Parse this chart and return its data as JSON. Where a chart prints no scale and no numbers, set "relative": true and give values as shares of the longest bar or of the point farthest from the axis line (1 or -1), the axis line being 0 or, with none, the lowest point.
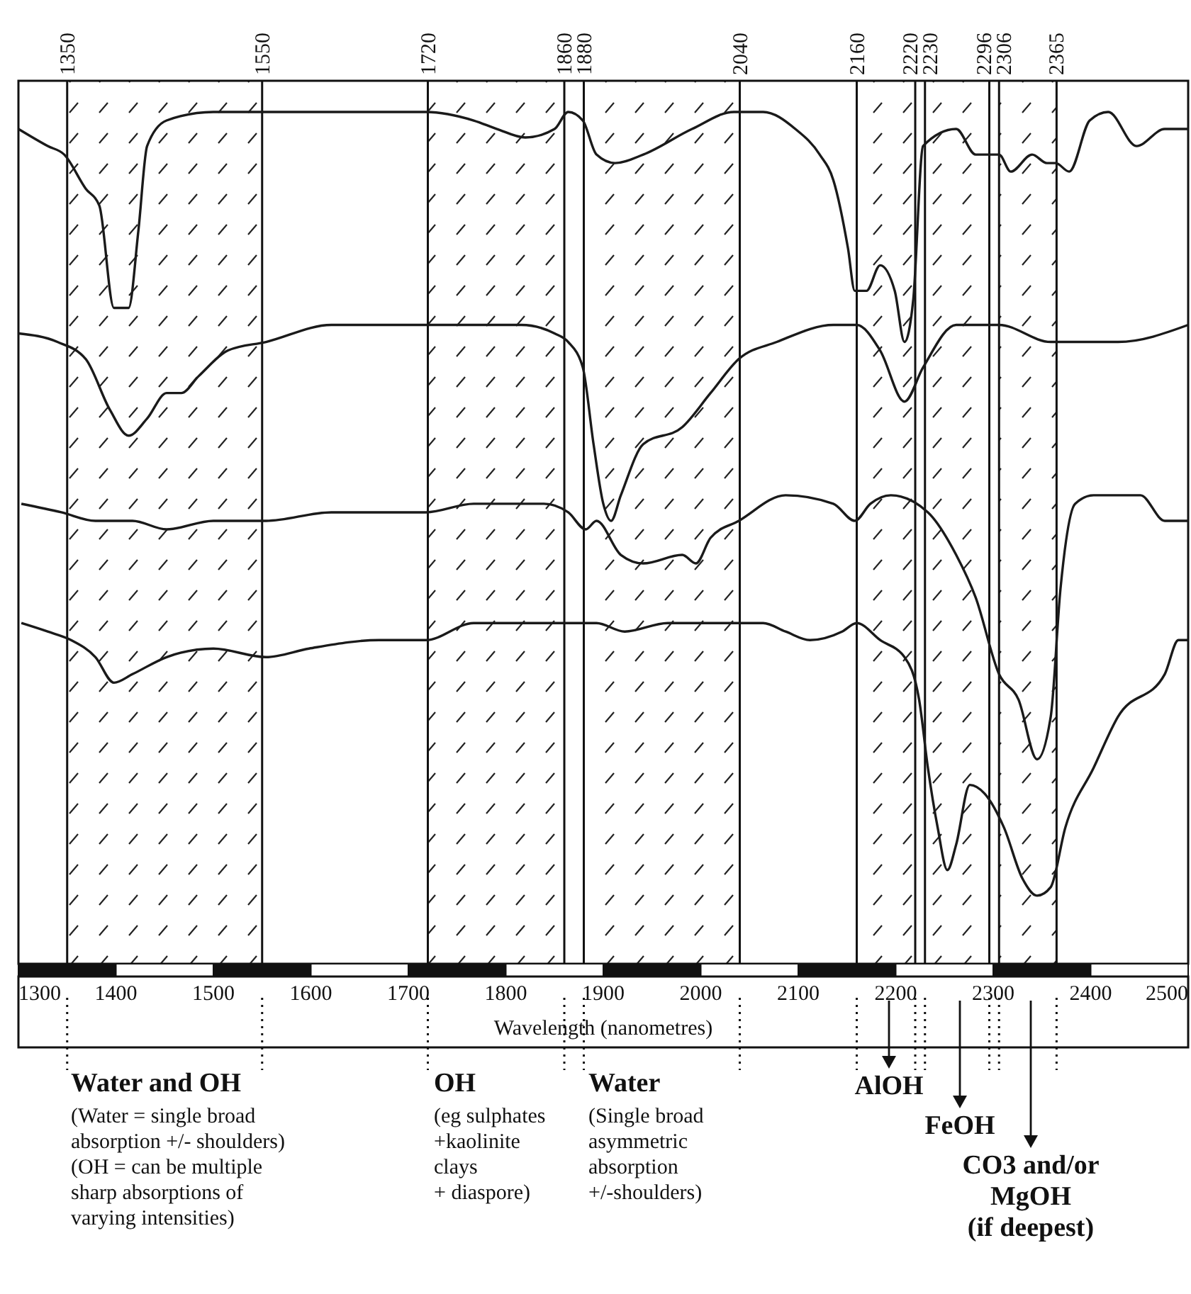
{
  "chart_data": {
    "type": "line",
    "relative": true,
    "xlabel": "Wavelength (nanometres)",
    "xlim": [
      1300,
      2500
    ],
    "xticks": [
      1300,
      1400,
      1500,
      1600,
      1700,
      1800,
      1900,
      2000,
      2100,
      2200,
      2300,
      2400,
      2500
    ],
    "x2lim": [
      1300,
      2500
    ],
    "x2ticks": [
      1350,
      1550,
      1720,
      1860,
      1880,
      2040,
      2160,
      2220,
      2230,
      2296,
      2306,
      2365
    ],
    "grid": "x",
    "marker": "none",
    "line_style": "solid",
    "bands": [
      {
        "axis": "x",
        "from": 1350,
        "to": 1550
      },
      {
        "axis": "x",
        "from": 1720,
        "to": 1860
      },
      {
        "axis": "x",
        "from": 1880,
        "to": 2040
      },
      {
        "axis": "x",
        "from": 2160,
        "to": 2220
      },
      {
        "axis": "x",
        "from": 2230,
        "to": 2296
      },
      {
        "axis": "x",
        "from": 2306,
        "to": 2365
      }
    ],
    "series": [
      {
        "color": "#1a1a1a",
        "x": [
          1300,
          1330,
          1347,
          1369,
          1383,
          1398,
          1413,
          1423,
          1432,
          1452,
          1500,
          1573,
          1718,
          1767,
          1791,
          1820,
          1850,
          1864,
          1879,
          1893,
          1912,
          1941,
          1991,
          2034,
          2064,
          2097,
          2122,
          2136,
          2151,
          2158,
          2170,
          2184,
          2199,
          2209,
          2218,
          2228,
          2262,
          2282,
          2306,
          2318,
          2340,
          2355,
          2364,
          2378,
          2399,
          2418,
          2447,
          2476,
          2500
        ],
        "values": [
          0.98,
          0.96,
          0.95,
          0.91,
          0.89,
          0.77,
          0.77,
          0.86,
          0.96,
          0.99,
          1.0,
          1.0,
          1.0,
          0.99,
          0.98,
          0.97,
          0.98,
          1.0,
          0.99,
          0.95,
          0.94,
          0.95,
          0.98,
          1.0,
          1.0,
          0.98,
          0.95,
          0.92,
          0.84,
          0.79,
          0.79,
          0.82,
          0.79,
          0.73,
          0.78,
          0.96,
          0.98,
          0.95,
          0.95,
          0.93,
          0.95,
          0.94,
          0.94,
          0.93,
          0.99,
          1.0,
          0.96,
          0.98,
          0.98
        ]
      },
      {
        "color": "#1a1a1a",
        "x": [
          1300,
          1340,
          1369,
          1394,
          1413,
          1432,
          1452,
          1467,
          1485,
          1515,
          1554,
          1621,
          1670,
          1718,
          1816,
          1850,
          1864,
          1879,
          1890,
          1900,
          1908,
          1918,
          1941,
          1981,
          2010,
          2039,
          2078,
          2136,
          2160,
          2184,
          2209,
          2228,
          2262,
          2306,
          2359,
          2428,
          2500
        ],
        "values": [
          0.74,
          0.73,
          0.71,
          0.65,
          0.62,
          0.64,
          0.67,
          0.67,
          0.69,
          0.72,
          0.73,
          0.75,
          0.75,
          0.75,
          0.75,
          0.74,
          0.73,
          0.7,
          0.61,
          0.54,
          0.52,
          0.55,
          0.61,
          0.63,
          0.67,
          0.71,
          0.73,
          0.75,
          0.75,
          0.72,
          0.66,
          0.7,
          0.75,
          0.75,
          0.73,
          0.73,
          0.75
        ]
      },
      {
        "color": "#1a1a1a",
        "x": [
          1303,
          1344,
          1379,
          1417,
          1452,
          1500,
          1554,
          1621,
          1718,
          1767,
          1791,
          1839,
          1864,
          1882,
          1893,
          1918,
          1941,
          1981,
          1995,
          2010,
          2039,
          2087,
          2136,
          2158,
          2174,
          2195,
          2233,
          2262,
          2282,
          2306,
          2326,
          2345,
          2359,
          2369,
          2384,
          2403,
          2451,
          2476,
          2500
        ],
        "values": [
          0.54,
          0.53,
          0.52,
          0.52,
          0.51,
          0.52,
          0.52,
          0.53,
          0.53,
          0.54,
          0.54,
          0.54,
          0.53,
          0.51,
          0.52,
          0.48,
          0.47,
          0.48,
          0.47,
          0.5,
          0.52,
          0.55,
          0.54,
          0.52,
          0.54,
          0.55,
          0.53,
          0.48,
          0.43,
          0.34,
          0.31,
          0.24,
          0.29,
          0.44,
          0.54,
          0.55,
          0.55,
          0.52,
          0.52
        ]
      },
      {
        "color": "#1a1a1a",
        "x": [
          1303,
          1330,
          1354,
          1379,
          1398,
          1417,
          1452,
          1500,
          1554,
          1598,
          1670,
          1718,
          1767,
          1816,
          1864,
          1893,
          1922,
          1966,
          2039,
          2064,
          2087,
          2112,
          2145,
          2160,
          2184,
          2209,
          2224,
          2233,
          2243,
          2253,
          2262,
          2276,
          2291,
          2311,
          2330,
          2345,
          2359,
          2374,
          2403,
          2428,
          2476,
          2490,
          2500
        ],
        "values": [
          0.4,
          0.39,
          0.38,
          0.36,
          0.33,
          0.34,
          0.36,
          0.37,
          0.36,
          0.37,
          0.38,
          0.38,
          0.4,
          0.4,
          0.4,
          0.4,
          0.39,
          0.4,
          0.4,
          0.4,
          0.39,
          0.38,
          0.39,
          0.4,
          0.38,
          0.36,
          0.31,
          0.23,
          0.16,
          0.11,
          0.14,
          0.21,
          0.2,
          0.16,
          0.1,
          0.08,
          0.09,
          0.16,
          0.23,
          0.29,
          0.34,
          0.38,
          0.38
        ]
      }
    ],
    "annotations": [
      "Water and OH",
      "(Water = single broad\nabsorption +/- shoulders)\n(OH = can be multiple\nsharp absorptions of\nvarying intensities)",
      "OH",
      "(eg sulphates\n+kaolinite\nclays\n+ diaspore)",
      "Water",
      "(Single broad\nasymmetric\nabsorption\n+/-shoulders)",
      "AlOH",
      "FeOH",
      "CO3 and/or\nMgOH\n(if deepest)"
    ]
  }
}
